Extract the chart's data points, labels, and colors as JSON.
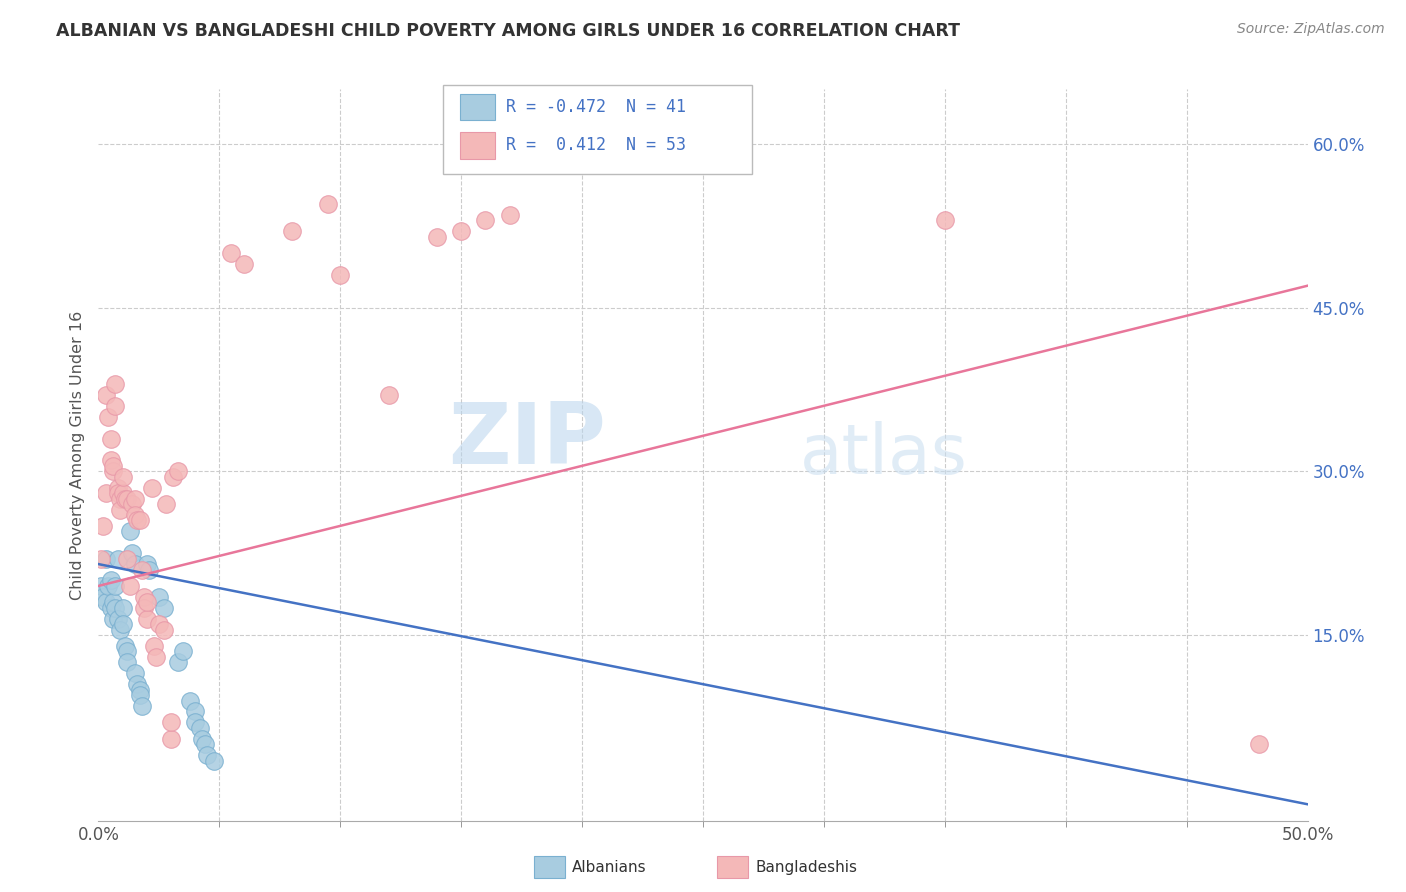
{
  "title": "ALBANIAN VS BANGLADESHI CHILD POVERTY AMONG GIRLS UNDER 16 CORRELATION CHART",
  "source": "Source: ZipAtlas.com",
  "ylabel": "Child Poverty Among Girls Under 16",
  "xlim": [
    0.0,
    0.5
  ],
  "ylim": [
    -0.02,
    0.65
  ],
  "yticks_right": [
    0.15,
    0.3,
    0.45,
    0.6
  ],
  "ytick_labels_right": [
    "15.0%",
    "30.0%",
    "45.0%",
    "60.0%"
  ],
  "xtick_labels_shown": [
    "0.0%",
    "50.0%"
  ],
  "xtick_positions_shown": [
    0.0,
    0.5
  ],
  "xtick_minor_positions": [
    0.05,
    0.1,
    0.15,
    0.2,
    0.25,
    0.3,
    0.35,
    0.4,
    0.45
  ],
  "watermark": "ZIPatlas",
  "legend_R_albanian": "-0.472",
  "legend_N_albanian": "41",
  "legend_R_bangladeshi": "0.412",
  "legend_N_bangladeshi": "53",
  "albanian_color": "#a8cce0",
  "bangladeshi_color": "#f4b8b8",
  "albanian_line_color": "#4472c4",
  "bangladeshi_line_color": "#e8769a",
  "background_color": "#ffffff",
  "grid_color": "#cccccc",
  "albanian_scatter": [
    [
      0.001,
      0.195
    ],
    [
      0.002,
      0.185
    ],
    [
      0.003,
      0.18
    ],
    [
      0.003,
      0.22
    ],
    [
      0.004,
      0.195
    ],
    [
      0.005,
      0.2
    ],
    [
      0.005,
      0.175
    ],
    [
      0.006,
      0.165
    ],
    [
      0.006,
      0.18
    ],
    [
      0.007,
      0.195
    ],
    [
      0.007,
      0.175
    ],
    [
      0.008,
      0.22
    ],
    [
      0.008,
      0.165
    ],
    [
      0.009,
      0.155
    ],
    [
      0.01,
      0.175
    ],
    [
      0.01,
      0.16
    ],
    [
      0.011,
      0.14
    ],
    [
      0.012,
      0.135
    ],
    [
      0.012,
      0.125
    ],
    [
      0.013,
      0.245
    ],
    [
      0.014,
      0.225
    ],
    [
      0.015,
      0.215
    ],
    [
      0.015,
      0.115
    ],
    [
      0.016,
      0.105
    ],
    [
      0.017,
      0.1
    ],
    [
      0.017,
      0.095
    ],
    [
      0.018,
      0.085
    ],
    [
      0.02,
      0.215
    ],
    [
      0.021,
      0.21
    ],
    [
      0.025,
      0.185
    ],
    [
      0.027,
      0.175
    ],
    [
      0.033,
      0.125
    ],
    [
      0.035,
      0.135
    ],
    [
      0.038,
      0.09
    ],
    [
      0.04,
      0.08
    ],
    [
      0.04,
      0.07
    ],
    [
      0.042,
      0.065
    ],
    [
      0.043,
      0.055
    ],
    [
      0.044,
      0.05
    ],
    [
      0.045,
      0.04
    ],
    [
      0.048,
      0.035
    ]
  ],
  "bangladeshi_scatter": [
    [
      0.001,
      0.22
    ],
    [
      0.002,
      0.25
    ],
    [
      0.003,
      0.28
    ],
    [
      0.003,
      0.37
    ],
    [
      0.004,
      0.35
    ],
    [
      0.005,
      0.33
    ],
    [
      0.005,
      0.31
    ],
    [
      0.006,
      0.3
    ],
    [
      0.006,
      0.305
    ],
    [
      0.007,
      0.36
    ],
    [
      0.007,
      0.38
    ],
    [
      0.008,
      0.285
    ],
    [
      0.008,
      0.28
    ],
    [
      0.009,
      0.275
    ],
    [
      0.009,
      0.265
    ],
    [
      0.01,
      0.28
    ],
    [
      0.01,
      0.295
    ],
    [
      0.011,
      0.275
    ],
    [
      0.012,
      0.275
    ],
    [
      0.012,
      0.22
    ],
    [
      0.013,
      0.195
    ],
    [
      0.014,
      0.27
    ],
    [
      0.015,
      0.275
    ],
    [
      0.015,
      0.26
    ],
    [
      0.016,
      0.255
    ],
    [
      0.017,
      0.255
    ],
    [
      0.018,
      0.21
    ],
    [
      0.019,
      0.185
    ],
    [
      0.019,
      0.175
    ],
    [
      0.02,
      0.165
    ],
    [
      0.02,
      0.18
    ],
    [
      0.022,
      0.285
    ],
    [
      0.023,
      0.14
    ],
    [
      0.024,
      0.13
    ],
    [
      0.025,
      0.16
    ],
    [
      0.027,
      0.155
    ],
    [
      0.028,
      0.27
    ],
    [
      0.03,
      0.055
    ],
    [
      0.03,
      0.07
    ],
    [
      0.031,
      0.295
    ],
    [
      0.033,
      0.3
    ],
    [
      0.055,
      0.5
    ],
    [
      0.06,
      0.49
    ],
    [
      0.08,
      0.52
    ],
    [
      0.095,
      0.545
    ],
    [
      0.1,
      0.48
    ],
    [
      0.12,
      0.37
    ],
    [
      0.14,
      0.515
    ],
    [
      0.15,
      0.52
    ],
    [
      0.16,
      0.53
    ],
    [
      0.17,
      0.535
    ],
    [
      0.35,
      0.53
    ],
    [
      0.48,
      0.05
    ]
  ],
  "alb_trend_x0": 0.0,
  "alb_trend_y0": 0.215,
  "alb_trend_x1": 0.5,
  "alb_trend_y1": -0.005,
  "ban_trend_x0": 0.0,
  "ban_trend_y0": 0.195,
  "ban_trend_x1": 0.5,
  "ban_trend_y1": 0.47
}
